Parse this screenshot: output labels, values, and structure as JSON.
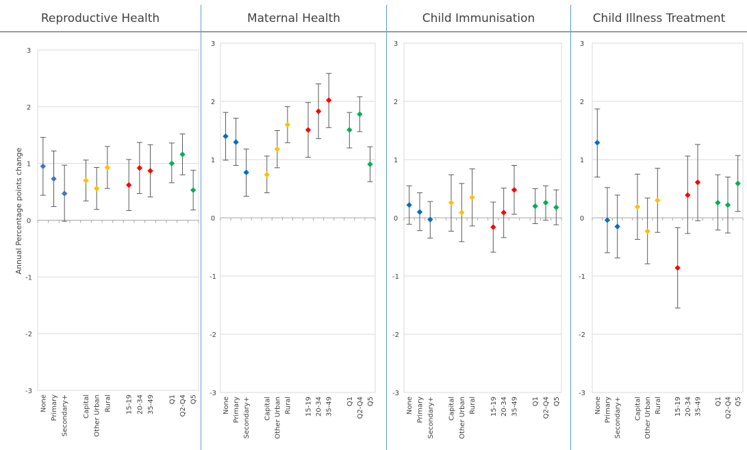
{
  "chart_data": [
    {
      "type": "scatter",
      "title": "Reproductive Health",
      "ylabel": "Annual Percentage points change",
      "ylim": [
        -3,
        3
      ],
      "yticks": [
        "3",
        "2",
        "1",
        "0",
        "-1",
        "-2",
        "-3"
      ],
      "categories": [
        "None",
        "Primary",
        "Secondary+",
        "Capital",
        "Other Urban",
        "Rural",
        "15-19",
        "20-34",
        "35-49",
        "Q1",
        "Q2-Q4",
        "Q5"
      ],
      "values": [
        0.95,
        0.73,
        0.47,
        0.7,
        0.56,
        0.93,
        0.62,
        0.92,
        0.87,
        1.0,
        1.16,
        0.53
      ],
      "lower": [
        0.44,
        0.24,
        -0.02,
        0.34,
        0.19,
        0.56,
        0.17,
        0.47,
        0.41,
        0.66,
        0.8,
        0.18
      ],
      "upper": [
        1.46,
        1.22,
        0.97,
        1.06,
        0.93,
        1.3,
        1.07,
        1.37,
        1.33,
        1.36,
        1.52,
        0.88
      ],
      "colors": [
        "#4472c4",
        "#4472c4",
        "#4472c4",
        "#ffc000",
        "#ffc000",
        "#ffc000",
        "#ff0000",
        "#ff0000",
        "#ff0000",
        "#00b050",
        "#00b050",
        "#00b050"
      ],
      "grid": true
    },
    {
      "type": "scatter",
      "title": "Maternal Health",
      "ylabel": "",
      "ylim": [
        -3,
        3
      ],
      "yticks": [
        "3",
        "2",
        "1",
        "0",
        "-1",
        "-2",
        "-3"
      ],
      "categories": [
        "None",
        "Primary",
        "Secondary+",
        "Capital",
        "Other Urban",
        "Rural",
        "15-19",
        "20-34",
        "35-49",
        "Q1",
        "Q2-Q4",
        "Q5"
      ],
      "values": [
        1.4,
        1.3,
        0.78,
        0.74,
        1.18,
        1.6,
        1.51,
        1.83,
        2.02,
        1.51,
        1.78,
        0.92
      ],
      "lower": [
        0.99,
        0.9,
        0.37,
        0.43,
        0.86,
        1.29,
        1.04,
        1.36,
        1.55,
        1.2,
        1.48,
        0.62
      ],
      "upper": [
        1.81,
        1.71,
        1.18,
        1.06,
        1.5,
        1.91,
        1.98,
        2.3,
        2.48,
        1.81,
        2.08,
        1.22
      ],
      "colors": [
        "#0070c0",
        "#0070c0",
        "#0070c0",
        "#ffc000",
        "#ffc000",
        "#ffc000",
        "#ff0000",
        "#ff0000",
        "#ff0000",
        "#00b050",
        "#00b050",
        "#00b050"
      ],
      "grid": true
    },
    {
      "type": "scatter",
      "title": "Child Immunisation",
      "ylabel": "",
      "ylim": [
        -3,
        3
      ],
      "yticks": [
        "3",
        "2",
        "1",
        "0",
        "-1",
        "-2",
        "-3"
      ],
      "categories": [
        "None",
        "Primary",
        "Secondary+",
        "Capital",
        "Other Urban",
        "Rural",
        "15-19",
        "20-34",
        "35-49",
        "Q1",
        "Q2-Q4",
        "Q5"
      ],
      "values": [
        0.22,
        0.1,
        -0.03,
        0.26,
        0.09,
        0.35,
        -0.16,
        0.09,
        0.48,
        0.2,
        0.26,
        0.18
      ],
      "lower": [
        -0.11,
        -0.22,
        -0.35,
        -0.23,
        -0.41,
        -0.14,
        -0.59,
        -0.34,
        0.06,
        -0.1,
        -0.04,
        -0.12
      ],
      "upper": [
        0.55,
        0.43,
        0.28,
        0.74,
        0.59,
        0.84,
        0.27,
        0.51,
        0.9,
        0.5,
        0.55,
        0.48
      ],
      "colors": [
        "#0070c0",
        "#0070c0",
        "#0070c0",
        "#ffc000",
        "#ffc000",
        "#ffc000",
        "#ff0000",
        "#ff0000",
        "#ff0000",
        "#00b050",
        "#00b050",
        "#00b050"
      ],
      "grid": true
    },
    {
      "type": "scatter",
      "title": "Child Illness Treatment",
      "ylabel": "",
      "ylim": [
        -3,
        3
      ],
      "yticks": [
        "3",
        "2",
        "1",
        "0",
        "-1",
        "-2",
        "-3"
      ],
      "categories": [
        "None",
        "Primary",
        "Secondary+",
        "Capital",
        "Other Urban",
        "Rural",
        "15-19",
        "20-34",
        "35-49",
        "Q1",
        "Q2-Q4",
        "Q5"
      ],
      "values": [
        1.29,
        -0.04,
        -0.15,
        0.19,
        -0.23,
        0.3,
        -0.86,
        0.39,
        0.61,
        0.26,
        0.22,
        0.59
      ],
      "lower": [
        0.7,
        -0.6,
        -0.69,
        -0.37,
        -0.79,
        -0.25,
        -1.55,
        -0.27,
        -0.05,
        -0.21,
        -0.26,
        0.11
      ],
      "upper": [
        1.87,
        0.52,
        0.39,
        0.75,
        0.34,
        0.85,
        -0.17,
        1.06,
        1.26,
        0.74,
        0.7,
        1.07
      ],
      "colors": [
        "#0070c0",
        "#0070c0",
        "#0070c0",
        "#ffc000",
        "#ffc000",
        "#ffc000",
        "#ff0000",
        "#ff0000",
        "#ff0000",
        "#00b050",
        "#00b050",
        "#00b050"
      ],
      "grid": true
    }
  ]
}
